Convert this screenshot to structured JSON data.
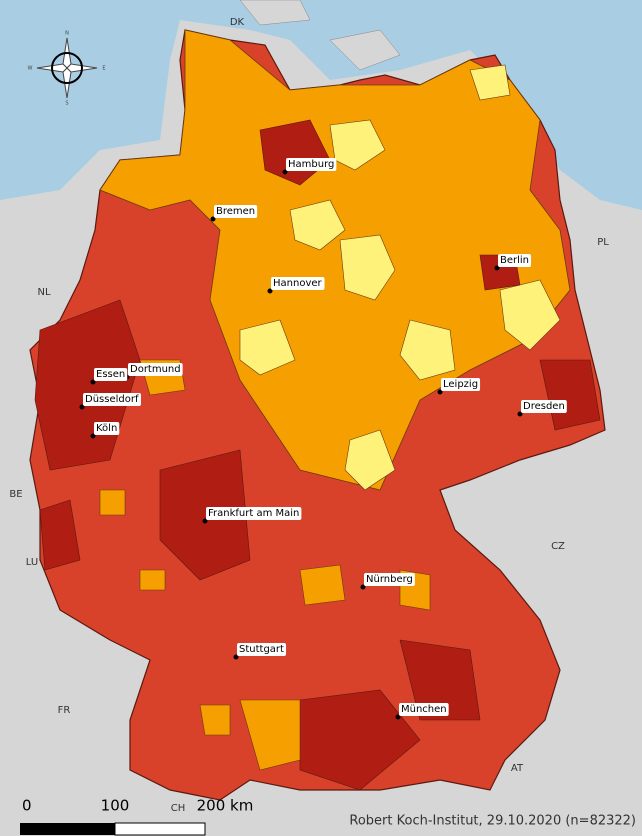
{
  "compass": [
    "N",
    "E",
    "S",
    "W"
  ],
  "countries": [
    "DK",
    "PL",
    "NL",
    "BE",
    "LU",
    "CZ",
    "FR",
    "AT",
    "CH"
  ],
  "cities": [
    "Hamburg",
    "Bremen",
    "Hannover",
    "Berlin",
    "Dortmund",
    "Essen",
    "Düsseldorf",
    "Köln",
    "Leipzig",
    "Dresden",
    "Frankfurt am Main",
    "Nürnberg",
    "Stuttgart",
    "München"
  ],
  "scale": [
    "0",
    "100",
    "200 km"
  ],
  "credit": "Robert Koch-Institut, 29.10.2020 (n=82322)"
}
